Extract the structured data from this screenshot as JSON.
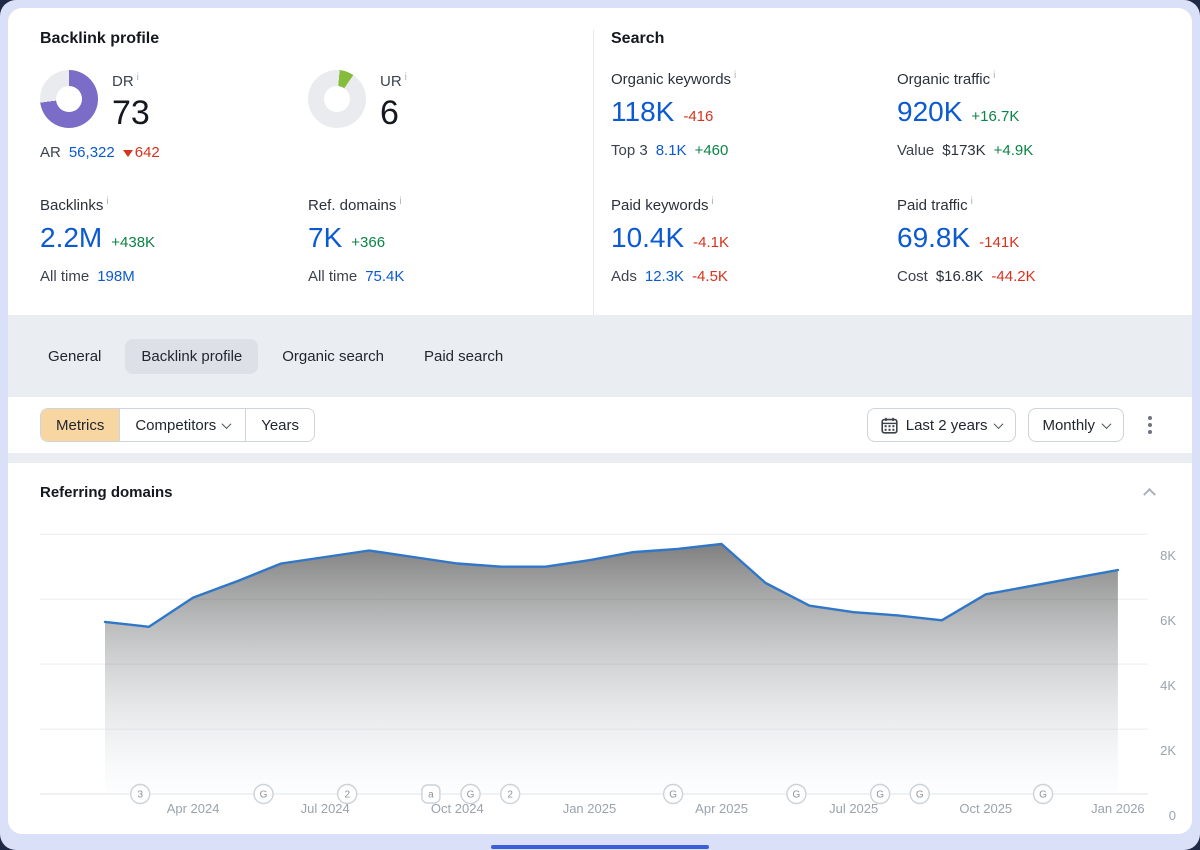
{
  "colors": {
    "blue": "#0b5ad1",
    "green": "#0c8346",
    "red": "#d6331f",
    "purple": "#7b6dc7",
    "lime": "#86bc3b",
    "chart_line": "#3077c8"
  },
  "icons": {
    "info": "i"
  },
  "backlink_profile": {
    "title": "Backlink profile",
    "dr": {
      "label": "DR",
      "value": "73",
      "percent": 73
    },
    "ar": {
      "label": "AR",
      "value": "56,322",
      "delta": "642"
    },
    "ur": {
      "label": "UR",
      "value": "6",
      "percent": 6
    },
    "backlinks": {
      "label": "Backlinks",
      "value": "2.2M",
      "delta": "+438K",
      "sub_label": "All time",
      "sub_value": "198M"
    },
    "ref_domains": {
      "label": "Ref. domains",
      "value": "7K",
      "delta": "+366",
      "sub_label": "All time",
      "sub_value": "75.4K"
    }
  },
  "search": {
    "title": "Search",
    "organic_keywords": {
      "label": "Organic keywords",
      "value": "118K",
      "delta": "-416",
      "sub_label": "Top 3",
      "sub_value": "8.1K",
      "sub_delta": "+460"
    },
    "organic_traffic": {
      "label": "Organic traffic",
      "value": "920K",
      "delta": "+16.7K",
      "sub_label": "Value",
      "sub_value": "$173K",
      "sub_delta": "+4.9K"
    },
    "paid_keywords": {
      "label": "Paid keywords",
      "value": "10.4K",
      "delta": "-4.1K",
      "sub_label": "Ads",
      "sub_value": "12.3K",
      "sub_delta": "-4.5K"
    },
    "paid_traffic": {
      "label": "Paid traffic",
      "value": "69.8K",
      "delta": "-141K",
      "sub_label": "Cost",
      "sub_value": "$16.8K",
      "sub_delta": "-44.2K"
    }
  },
  "tabs": {
    "items": [
      {
        "label": "General",
        "active": false
      },
      {
        "label": "Backlink profile",
        "active": true
      },
      {
        "label": "Organic search",
        "active": false
      },
      {
        "label": "Paid search",
        "active": false
      }
    ]
  },
  "toolbar": {
    "metrics_label": "Metrics",
    "competitors_label": "Competitors",
    "years_label": "Years",
    "date_range_label": "Last 2 years",
    "granularity_label": "Monthly"
  },
  "chart_data": {
    "type": "area",
    "title": "Referring domains",
    "x": [
      "Feb 2024",
      "Mar 2024",
      "Apr 2024",
      "May 2024",
      "Jun 2024",
      "Jul 2024",
      "Aug 2024",
      "Sep 2024",
      "Oct 2024",
      "Nov 2024",
      "Dec 2024",
      "Jan 2025",
      "Feb 2025",
      "Mar 2025",
      "Apr 2025",
      "May 2025",
      "Jun 2025",
      "Jul 2025",
      "Aug 2025",
      "Sep 2025",
      "Oct 2025",
      "Nov 2025",
      "Dec 2025",
      "Jan 2026"
    ],
    "values": [
      5300,
      5150,
      6050,
      6550,
      7100,
      7300,
      7500,
      7300,
      7100,
      7000,
      7000,
      7200,
      7450,
      7550,
      7700,
      6500,
      5800,
      5600,
      5500,
      5350,
      6150,
      6400,
      6650,
      6900
    ],
    "ylabel": "Referring domains",
    "ylim": [
      0,
      8100
    ],
    "grid": true,
    "legend": "none",
    "y_ticks": [
      {
        "label": "8K",
        "value": 8000
      },
      {
        "label": "6K",
        "value": 6000
      },
      {
        "label": "4K",
        "value": 4000
      },
      {
        "label": "2K",
        "value": 2000
      },
      {
        "label": "0",
        "value": 0
      }
    ],
    "x_tick_labels": [
      {
        "label": "Apr 2024",
        "month_index": 2
      },
      {
        "label": "Jul 2024",
        "month_index": 5
      },
      {
        "label": "Oct 2024",
        "month_index": 8
      },
      {
        "label": "Jan 2025",
        "month_index": 11
      },
      {
        "label": "Apr 2025",
        "month_index": 14
      },
      {
        "label": "Jul 2025",
        "month_index": 17
      },
      {
        "label": "Oct 2025",
        "month_index": 20
      },
      {
        "label": "Jan 2026",
        "month_index": 23
      }
    ],
    "annotations": [
      {
        "glyph": "3",
        "month_index": 0.8,
        "shape": "circle"
      },
      {
        "glyph": "G",
        "month_index": 3.6,
        "shape": "circle"
      },
      {
        "glyph": "2",
        "month_index": 5.5,
        "shape": "circle"
      },
      {
        "glyph": "a",
        "month_index": 7.4,
        "shape": "square"
      },
      {
        "glyph": "G",
        "month_index": 8.3,
        "shape": "circle"
      },
      {
        "glyph": "2",
        "month_index": 9.2,
        "shape": "circle"
      },
      {
        "glyph": "G",
        "month_index": 12.9,
        "shape": "circle"
      },
      {
        "glyph": "G",
        "month_index": 15.7,
        "shape": "circle"
      },
      {
        "glyph": "G",
        "month_index": 17.6,
        "shape": "circle"
      },
      {
        "glyph": "G",
        "month_index": 18.5,
        "shape": "circle"
      },
      {
        "glyph": "G",
        "month_index": 21.3,
        "shape": "circle"
      }
    ]
  }
}
